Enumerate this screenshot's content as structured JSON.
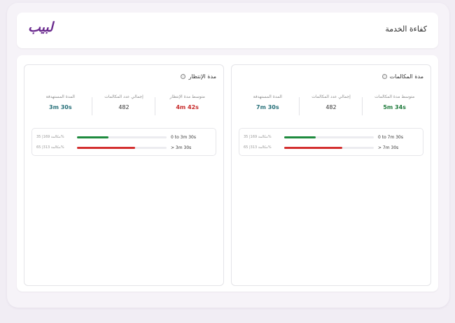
{
  "header": {
    "logo_text": "لبيب",
    "title": "كفاءة الخدمة"
  },
  "colors": {
    "brand": "#6a2a8e",
    "green": "#1e8a3e",
    "red": "#d32f2f",
    "teal": "#256f78"
  },
  "call_duration": {
    "title": "مدة المكالمات",
    "info_icon": "ⓘ",
    "stats": [
      {
        "label": "متوسط مدة المكالمات",
        "value": "5m 34s"
      },
      {
        "label": "إجمالي عدد المكالمات",
        "value": "482"
      },
      {
        "label": "المدة المستهدفة",
        "value": "7m 30s"
      }
    ],
    "bars": [
      {
        "count": "مكالمة 169| 35%",
        "percent": 35,
        "range": "0 to 7m 30s"
      },
      {
        "count": "مكالمة 313| 65%",
        "percent": 65,
        "range": "> 7m 30s"
      }
    ]
  },
  "wait_duration": {
    "title": "مدة الإنتظار",
    "info_icon": "ⓘ",
    "stats": [
      {
        "label": "متوسط مدة الإنتظار",
        "value": "4m 42s"
      },
      {
        "label": "إجمالي عدد المكالمات",
        "value": "482"
      },
      {
        "label": "المدة المستهدفة",
        "value": "3m 30s"
      }
    ],
    "bars": [
      {
        "count": "مكالمة 169| 35%",
        "percent": 35,
        "range": "0 to 3m 30s"
      },
      {
        "count": "مكالمة 313| 65%",
        "percent": 65,
        "range": "> 3m 30s"
      }
    ]
  }
}
